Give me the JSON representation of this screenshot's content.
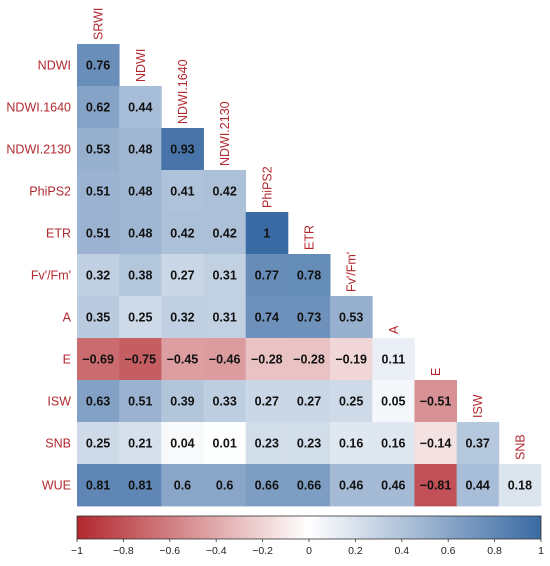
{
  "chart_data": {
    "type": "heatmap",
    "title": "",
    "variables": [
      "SRWI",
      "NDWI",
      "NDWI.1640",
      "NDWI.2130",
      "PhiPS2",
      "ETR",
      "Fv'/Fm'",
      "A",
      "E",
      "ISW",
      "SNB",
      "WUE"
    ],
    "rows": [
      "NDWI",
      "NDWI.1640",
      "NDWI.2130",
      "PhiPS2",
      "ETR",
      "Fv'/Fm'",
      "A",
      "E",
      "ISW",
      "SNB",
      "WUE"
    ],
    "columns": [
      "SRWI",
      "NDWI",
      "NDWI.1640",
      "NDWI.2130",
      "PhiPS2",
      "ETR",
      "Fv'/Fm'",
      "A",
      "E",
      "ISW",
      "SNB"
    ],
    "values": [
      [
        0.76
      ],
      [
        0.62,
        0.44
      ],
      [
        0.53,
        0.48,
        0.93
      ],
      [
        0.51,
        0.48,
        0.41,
        0.42
      ],
      [
        0.51,
        0.48,
        0.42,
        0.42,
        1
      ],
      [
        0.32,
        0.38,
        0.27,
        0.31,
        0.77,
        0.78
      ],
      [
        0.35,
        0.25,
        0.32,
        0.31,
        0.74,
        0.73,
        0.53
      ],
      [
        -0.69,
        -0.75,
        -0.45,
        -0.46,
        -0.28,
        -0.28,
        -0.19,
        0.11
      ],
      [
        0.63,
        0.51,
        0.39,
        0.33,
        0.27,
        0.27,
        0.25,
        0.05,
        -0.51
      ],
      [
        0.25,
        0.21,
        0.04,
        0.01,
        0.23,
        0.23,
        0.16,
        0.16,
        -0.14,
        0.37
      ],
      [
        0.81,
        0.81,
        0.6,
        0.6,
        0.66,
        0.66,
        0.46,
        0.46,
        -0.81,
        0.44,
        0.18
      ]
    ],
    "colorbar": {
      "range": [
        -1,
        1
      ],
      "ticks": [
        -1,
        -0.8,
        -0.6,
        -0.4,
        -0.2,
        0,
        0.2,
        0.4,
        0.6,
        0.8,
        1
      ],
      "tick_labels": [
        "−1",
        "−0.8",
        "−0.6",
        "−0.4",
        "−0.2",
        "0",
        "0.2",
        "0.4",
        "0.6",
        "0.8",
        "1"
      ],
      "placement": "bottom"
    },
    "colors": {
      "negative": "#b2282e",
      "zero": "#ffffff",
      "positive": "#3a6aa3",
      "label_text": "#b2282e"
    }
  }
}
